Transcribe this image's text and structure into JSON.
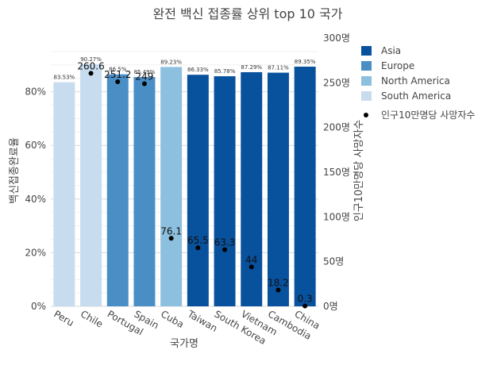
{
  "chart_data": {
    "type": "bar",
    "title": "완전 백신 접종률 상위 top 10 국가",
    "xlabel": "국가명",
    "ylabel": "백신접종완료율",
    "y2label": "인구10만명당 사망자수",
    "ylim": [
      0,
      100
    ],
    "y2lim": [
      0,
      300
    ],
    "yticks": [
      "0%",
      "20%",
      "40%",
      "60%",
      "80%"
    ],
    "y2ticks": [
      "0명",
      "50명",
      "100명",
      "150명",
      "200명",
      "250명",
      "300명"
    ],
    "categories": [
      "Peru",
      "Chile",
      "Portugal",
      "Spain",
      "Cuba",
      "Taiwan",
      "South Korea",
      "Vietnam",
      "Cambodia",
      "China"
    ],
    "regions": [
      "South America",
      "South America",
      "Europe",
      "Europe",
      "North America",
      "Asia",
      "Asia",
      "Asia",
      "Asia",
      "Asia"
    ],
    "values": [
      83.53,
      90.27,
      86.5,
      85.49,
      89.23,
      86.33,
      85.78,
      87.29,
      87.11,
      89.35
    ],
    "value_labels": [
      "83.53%",
      "90.27%",
      "86.5%",
      "85.49%",
      "89.23%",
      "86.33%",
      "85.78%",
      "87.29%",
      "87.11%",
      "89.35%"
    ],
    "deaths_per_100k": [
      null,
      260.6,
      251.2,
      249,
      76.1,
      65.5,
      63.3,
      44,
      18.2,
      0.3
    ],
    "death_labels": [
      "",
      "260.6",
      "251.2",
      "249",
      "76.1",
      "65.5",
      "63.3",
      "44",
      "18.2",
      "0.3"
    ],
    "legend": {
      "position": "right",
      "items": [
        {
          "name": "Asia",
          "color": "#08519c"
        },
        {
          "name": "Europe",
          "color": "#4a8ec6"
        },
        {
          "name": "North America",
          "color": "#8dbfdf"
        },
        {
          "name": "South America",
          "color": "#c7dcef"
        }
      ],
      "marker_label": "인구10만명당 사망자수"
    },
    "grid": true
  }
}
